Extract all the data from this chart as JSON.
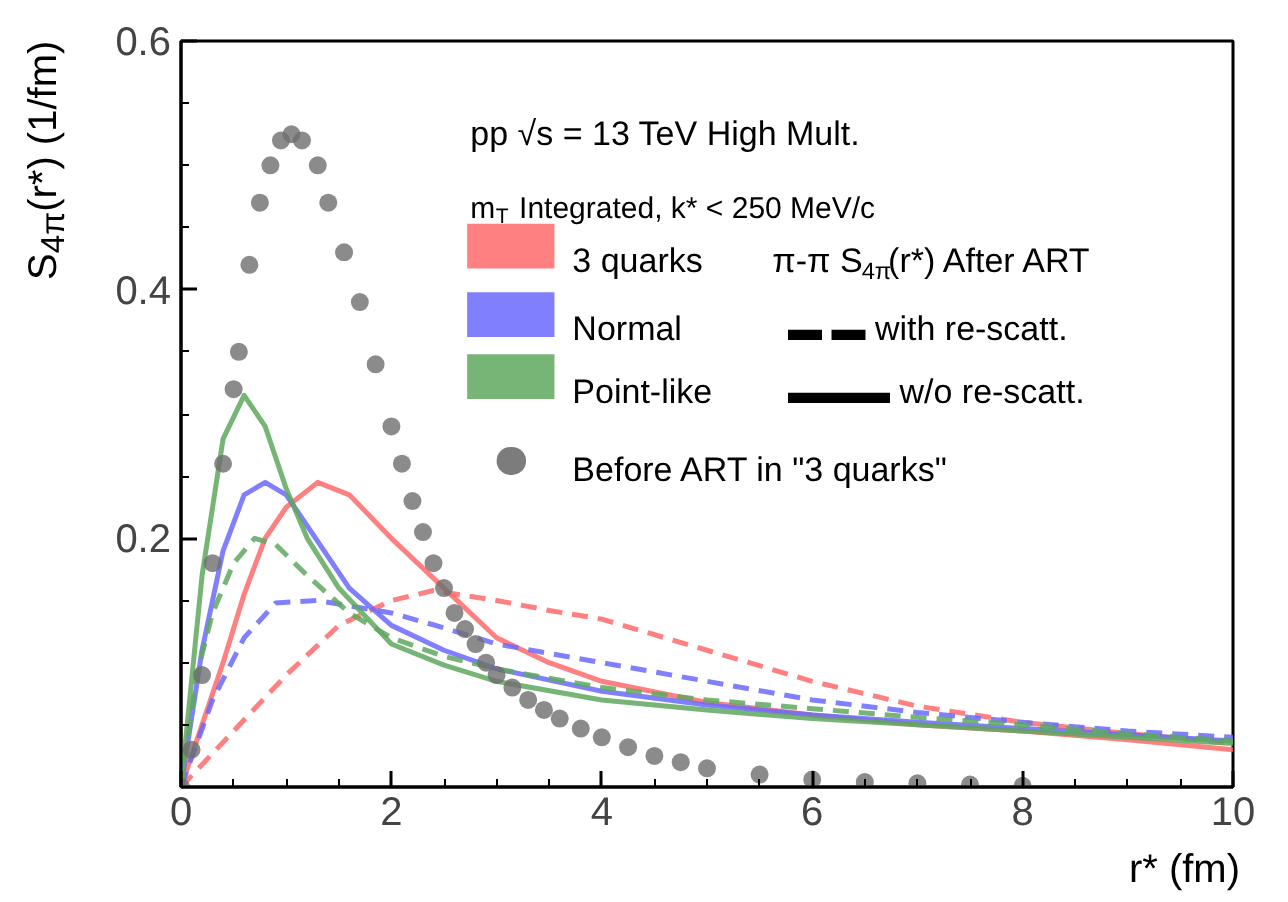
{
  "chart_data": {
    "type": "line",
    "xlabel": "r* (fm)",
    "ylabel": "S$_{4π}$(r*) (1/fm)",
    "xlim": [
      0,
      10
    ],
    "ylim": [
      0,
      0.6
    ],
    "xticks": [
      0,
      2,
      4,
      6,
      8,
      10
    ],
    "yticks": [
      0.2,
      0.4,
      0.6
    ],
    "legend": "top",
    "legend_title": "π-π S$_{4π}$(r*) After ART",
    "grid": false,
    "annotations": [
      "pp √s = 13 TeV High Mult.",
      "m$_{T}$ Integrated, k* < 250 MeV/c",
      "▬ ▬ with re-scatt.",
      "▬▬▬ w/o  re-scatt."
    ],
    "series": [
      {
        "name": "3 quarks",
        "color": "#ff6a6a",
        "line_style": "solid",
        "x": [
          0,
          0.2,
          0.4,
          0.6,
          0.8,
          1.0,
          1.3,
          1.6,
          2.0,
          2.5,
          3.0,
          3.5,
          4.0,
          5.0,
          6.0,
          7.0,
          8.0,
          9.0,
          10.0
        ],
        "values": [
          0,
          0.05,
          0.1,
          0.155,
          0.2,
          0.225,
          0.245,
          0.235,
          0.2,
          0.16,
          0.12,
          0.1,
          0.085,
          0.068,
          0.058,
          0.05,
          0.045,
          0.038,
          0.03
        ]
      },
      {
        "color": "#ff6a6a",
        "line_style": "dashed",
        "x": [
          0,
          0.5,
          1.0,
          1.5,
          2.0,
          2.4,
          3.0,
          3.5,
          4.0,
          5.0,
          6.0,
          7.0,
          8.0,
          9.0,
          10.0
        ],
        "values": [
          0,
          0.045,
          0.09,
          0.13,
          0.15,
          0.158,
          0.15,
          0.142,
          0.135,
          0.11,
          0.085,
          0.065,
          0.052,
          0.043,
          0.035
        ]
      },
      {
        "name": "Normal",
        "color": "#6a6aff",
        "line_style": "solid",
        "x": [
          0,
          0.2,
          0.4,
          0.6,
          0.8,
          1.0,
          1.2,
          1.6,
          2.0,
          2.5,
          3.0,
          4.0,
          5.0,
          6.0,
          7.0,
          8.0,
          9.0,
          10.0
        ],
        "values": [
          0,
          0.11,
          0.19,
          0.235,
          0.245,
          0.235,
          0.21,
          0.16,
          0.13,
          0.11,
          0.095,
          0.077,
          0.066,
          0.058,
          0.052,
          0.047,
          0.042,
          0.037
        ]
      },
      {
        "color": "#6a6aff",
        "line_style": "dashed",
        "x": [
          0,
          0.3,
          0.6,
          0.9,
          1.3,
          2.0,
          2.5,
          3.0,
          4.0,
          5.0,
          6.0,
          7.0,
          8.0,
          9.0,
          10.0
        ],
        "values": [
          0,
          0.07,
          0.12,
          0.148,
          0.15,
          0.14,
          0.128,
          0.115,
          0.1,
          0.085,
          0.07,
          0.06,
          0.052,
          0.045,
          0.04
        ]
      },
      {
        "name": "Point-like",
        "color": "#5fa85f",
        "line_style": "solid",
        "x": [
          0,
          0.2,
          0.4,
          0.6,
          0.8,
          1.0,
          1.2,
          1.5,
          2.0,
          2.5,
          3.0,
          4.0,
          5.0,
          6.0,
          7.0,
          8.0,
          9.0,
          10.0
        ],
        "values": [
          0,
          0.17,
          0.28,
          0.315,
          0.29,
          0.24,
          0.2,
          0.16,
          0.115,
          0.098,
          0.085,
          0.07,
          0.062,
          0.055,
          0.05,
          0.045,
          0.04,
          0.035
        ]
      },
      {
        "color": "#5fa85f",
        "line_style": "dashed",
        "x": [
          0,
          0.15,
          0.3,
          0.5,
          0.7,
          0.9,
          1.2,
          1.6,
          2.0,
          2.5,
          3.0,
          4.0,
          5.0,
          6.0,
          7.0,
          8.0,
          9.0,
          10.0
        ],
        "values": [
          0,
          0.09,
          0.14,
          0.18,
          0.2,
          0.195,
          0.17,
          0.14,
          0.12,
          0.105,
          0.095,
          0.08,
          0.07,
          0.063,
          0.056,
          0.05,
          0.043,
          0.037
        ]
      },
      {
        "name": "Before ART in \"3 quarks\"",
        "type": "scatter",
        "marker": "circle",
        "color": "#6e6e6e",
        "x": [
          0,
          0.1,
          0.2,
          0.3,
          0.4,
          0.5,
          0.55,
          0.65,
          0.75,
          0.85,
          0.95,
          1.05,
          1.15,
          1.3,
          1.4,
          1.55,
          1.7,
          1.85,
          2.0,
          2.1,
          2.2,
          2.3,
          2.4,
          2.5,
          2.6,
          2.7,
          2.8,
          2.9,
          3.0,
          3.15,
          3.3,
          3.45,
          3.6,
          3.8,
          4.0,
          4.25,
          4.5,
          4.75,
          5.0,
          5.5,
          6.0,
          6.5,
          7.0,
          7.5,
          8.0
        ],
        "values": [
          0,
          0.03,
          0.09,
          0.18,
          0.26,
          0.32,
          0.35,
          0.42,
          0.47,
          0.5,
          0.52,
          0.525,
          0.52,
          0.5,
          0.47,
          0.43,
          0.39,
          0.34,
          0.29,
          0.26,
          0.23,
          0.205,
          0.18,
          0.16,
          0.14,
          0.127,
          0.115,
          0.1,
          0.09,
          0.08,
          0.07,
          0.062,
          0.055,
          0.047,
          0.04,
          0.032,
          0.025,
          0.02,
          0.015,
          0.01,
          0.006,
          0.004,
          0.003,
          0.002,
          0.001
        ]
      }
    ]
  }
}
